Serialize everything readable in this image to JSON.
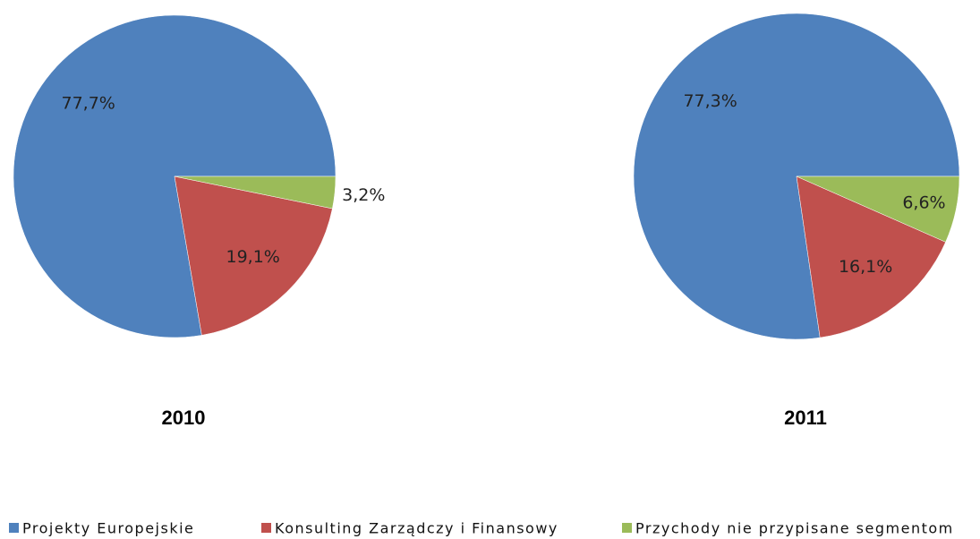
{
  "chart_data": [
    {
      "type": "pie",
      "title": "2010",
      "values": [
        77.7,
        19.1,
        3.2
      ],
      "value_labels": [
        "77,7%",
        "19,1%",
        "3,2%"
      ]
    },
    {
      "type": "pie",
      "title": "2011",
      "values": [
        77.3,
        16.1,
        6.6
      ],
      "value_labels": [
        "77,3%",
        "16,1%",
        "6,6%"
      ]
    }
  ],
  "legend": {
    "categories": [
      "Projekty Europejskie",
      "Konsulting Zarządczy i Finansowy",
      "Przychody nie przypisane segmentom"
    ],
    "colors": [
      "#4f81bd",
      "#c0504d",
      "#9bbb59"
    ]
  }
}
